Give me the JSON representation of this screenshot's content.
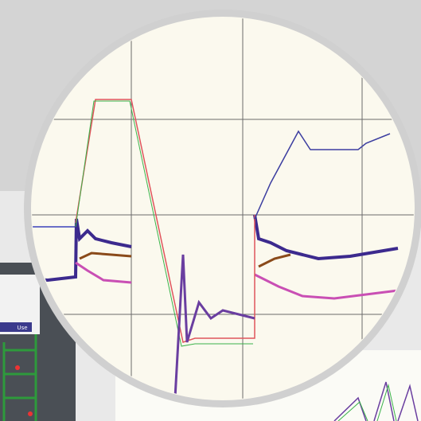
{
  "screen": {
    "button_label": "Use"
  }
}
